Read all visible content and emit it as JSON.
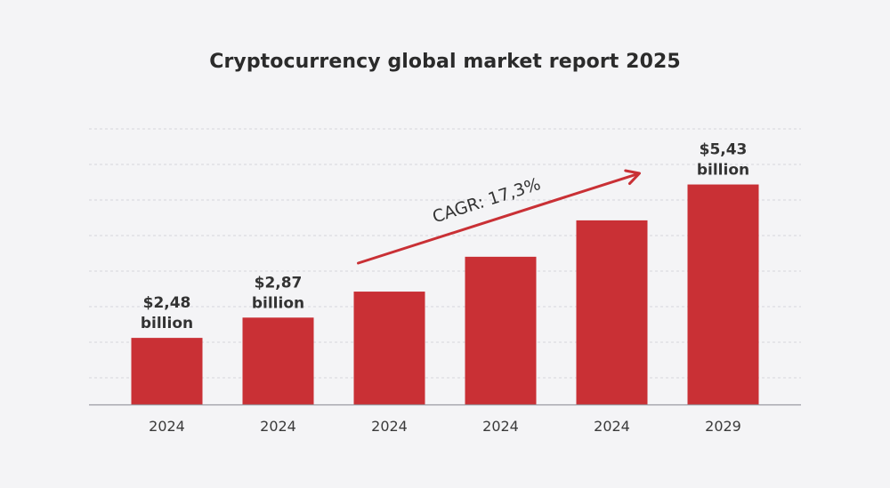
{
  "chart_data": {
    "type": "bar",
    "title": "Cryptocurrency global market report 2025",
    "xlabel": "",
    "ylabel": "",
    "categories": [
      "2024",
      "2024",
      "2024",
      "2024",
      "2024",
      "2029"
    ],
    "values": [
      2.48,
      2.87,
      3.37,
      4.04,
      4.74,
      5.43
    ],
    "data_labels": [
      [
        "$2,48",
        "billion"
      ],
      [
        "$2,87",
        "billion"
      ],
      null,
      null,
      null,
      [
        "$5,43",
        "billion"
      ]
    ],
    "ylim": [
      1.2,
      7.2
    ],
    "grid": true,
    "legend": "none",
    "annotation": {
      "text": "CAGR: 17,3%",
      "kind": "arrow",
      "from_category_index": 2,
      "to_category_index": 4
    },
    "colors": {
      "bar": "#c93035",
      "arrow": "#c93035",
      "grid": "#d6d6dc",
      "axis": "#9a9aa2",
      "background": "#f4f4f6"
    }
  }
}
